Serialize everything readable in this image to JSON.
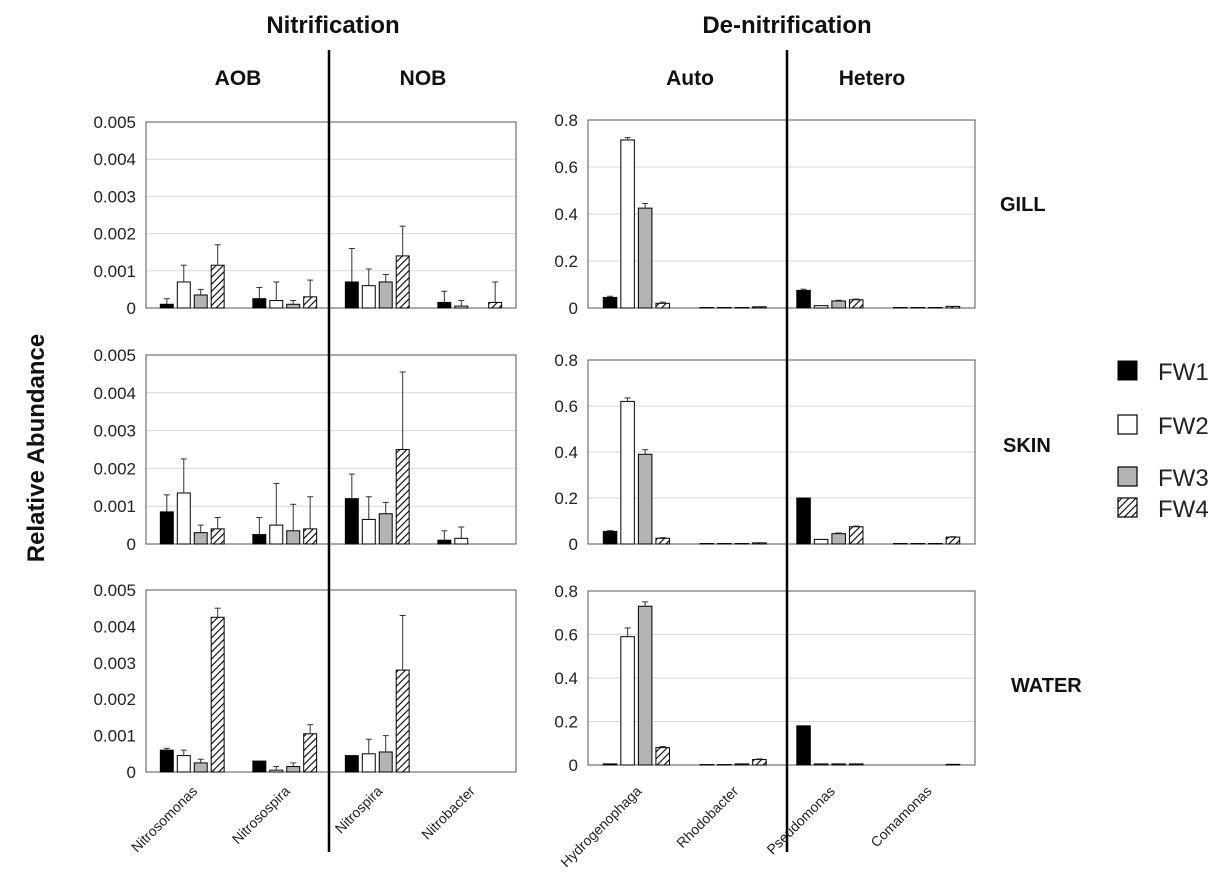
{
  "figure": {
    "headers": {
      "left": "Nitrification",
      "right": "De-nitrification"
    },
    "subheaders": [
      "AOB",
      "NOB",
      "Auto",
      "Hetero"
    ],
    "rows": [
      "GILL",
      "SKIN",
      "WATER"
    ],
    "ylabel": "Relative Abundance",
    "legend": [
      "FW1",
      "FW2",
      "FW3",
      "FW4"
    ],
    "series_styles": {
      "FW1": {
        "fill": "#000000",
        "pattern": "solid"
      },
      "FW2": {
        "fill": "#ffffff",
        "pattern": "solid"
      },
      "FW3": {
        "fill": "#b3b3b3",
        "pattern": "solid"
      },
      "FW4": {
        "fill": "#ffffff",
        "pattern": "diagonal-hatch"
      }
    }
  },
  "chart_data": [
    {
      "type": "bar",
      "panel": "nitrification",
      "row": "GILL",
      "categories": [
        "Nitrosomonas",
        "Nitrosospira",
        "Nitrospira",
        "Nitrobacter"
      ],
      "ylim": [
        0,
        0.005
      ],
      "yticks": [
        "0",
        "0.001",
        "0.002",
        "0.003",
        "0.004",
        "0.005"
      ],
      "grid": true,
      "series": [
        {
          "name": "FW1",
          "values": [
            0.0001,
            0.00025,
            0.0007,
            0.00015
          ],
          "errors": [
            0.00015,
            0.0003,
            0.0009,
            0.0003
          ]
        },
        {
          "name": "FW2",
          "values": [
            0.0007,
            0.0002,
            0.0006,
            5e-05
          ],
          "errors": [
            0.00045,
            0.0005,
            0.00045,
            0.00015
          ]
        },
        {
          "name": "FW3",
          "values": [
            0.00035,
            0.0001,
            0.0007,
            0.0
          ],
          "errors": [
            0.00015,
            0.0001,
            0.0002,
            0.0
          ]
        },
        {
          "name": "FW4",
          "values": [
            0.00115,
            0.0003,
            0.0014,
            0.00015
          ],
          "errors": [
            0.00055,
            0.00045,
            0.0008,
            0.00055
          ]
        }
      ]
    },
    {
      "type": "bar",
      "panel": "denitrification",
      "row": "GILL",
      "categories": [
        "Hydrogenophaga",
        "Rhodobacter",
        "Pseudomonas",
        "Comamonas"
      ],
      "ylim": [
        0,
        0.8
      ],
      "yticks": [
        "0",
        "0.2",
        "0.4",
        "0.6",
        "0.8"
      ],
      "grid": true,
      "series": [
        {
          "name": "FW1",
          "values": [
            0.045,
            0.002,
            0.075,
            0.002
          ],
          "errors": [
            0.005,
            0.0,
            0.005,
            0.0
          ]
        },
        {
          "name": "FW2",
          "values": [
            0.715,
            0.002,
            0.01,
            0.002
          ],
          "errors": [
            0.01,
            0.0,
            0.0,
            0.0
          ]
        },
        {
          "name": "FW3",
          "values": [
            0.425,
            0.002,
            0.03,
            0.002
          ],
          "errors": [
            0.02,
            0.0,
            0.003,
            0.0
          ]
        },
        {
          "name": "FW4",
          "values": [
            0.02,
            0.005,
            0.035,
            0.007
          ],
          "errors": [
            0.005,
            0.0,
            0.003,
            0.0
          ]
        }
      ]
    },
    {
      "type": "bar",
      "panel": "nitrification",
      "row": "SKIN",
      "categories": [
        "Nitrosomonas",
        "Nitrosospira",
        "Nitrospira",
        "Nitrobacter"
      ],
      "ylim": [
        0,
        0.005
      ],
      "yticks": [
        "0",
        "0.001",
        "0.002",
        "0.003",
        "0.004",
        "0.005"
      ],
      "grid": true,
      "series": [
        {
          "name": "FW1",
          "values": [
            0.00085,
            0.00025,
            0.0012,
            0.0001
          ],
          "errors": [
            0.00045,
            0.00045,
            0.00065,
            0.00025
          ]
        },
        {
          "name": "FW2",
          "values": [
            0.00135,
            0.0005,
            0.00065,
            0.00015
          ],
          "errors": [
            0.0009,
            0.0011,
            0.0006,
            0.0003
          ]
        },
        {
          "name": "FW3",
          "values": [
            0.0003,
            0.00035,
            0.0008,
            0.0
          ],
          "errors": [
            0.0002,
            0.0007,
            0.0003,
            0.0
          ]
        },
        {
          "name": "FW4",
          "values": [
            0.0004,
            0.0004,
            0.0025,
            0.0
          ],
          "errors": [
            0.0003,
            0.00085,
            0.00205,
            0.0
          ]
        }
      ]
    },
    {
      "type": "bar",
      "panel": "denitrification",
      "row": "SKIN",
      "categories": [
        "Hydrogenophaga",
        "Rhodobacter",
        "Pseudomonas",
        "Comamonas"
      ],
      "ylim": [
        0,
        0.8
      ],
      "yticks": [
        "0",
        "0.2",
        "0.4",
        "0.6",
        "0.8"
      ],
      "grid": true,
      "series": [
        {
          "name": "FW1",
          "values": [
            0.055,
            0.002,
            0.2,
            0.002
          ],
          "errors": [
            0.003,
            0.0,
            0.0,
            0.0
          ]
        },
        {
          "name": "FW2",
          "values": [
            0.62,
            0.002,
            0.02,
            0.002
          ],
          "errors": [
            0.015,
            0.0,
            0.0,
            0.0
          ]
        },
        {
          "name": "FW3",
          "values": [
            0.39,
            0.002,
            0.045,
            0.002
          ],
          "errors": [
            0.02,
            0.0,
            0.003,
            0.0
          ]
        },
        {
          "name": "FW4",
          "values": [
            0.025,
            0.005,
            0.075,
            0.03
          ],
          "errors": [
            0.003,
            0.0,
            0.003,
            0.002
          ]
        }
      ]
    },
    {
      "type": "bar",
      "panel": "nitrification",
      "row": "WATER",
      "categories": [
        "Nitrosomonas",
        "Nitrosospira",
        "Nitrospira",
        "Nitrobacter"
      ],
      "ylim": [
        0,
        0.005
      ],
      "yticks": [
        "0",
        "0.001",
        "0.002",
        "0.003",
        "0.004",
        "0.005"
      ],
      "grid": false,
      "series": [
        {
          "name": "FW1",
          "values": [
            0.0006,
            0.0003,
            0.00045,
            0.0
          ],
          "errors": [
            5e-05,
            0.0,
            0.0,
            0.0
          ]
        },
        {
          "name": "FW2",
          "values": [
            0.00045,
            5e-05,
            0.0005,
            0.0
          ],
          "errors": [
            0.00015,
            0.0001,
            0.0004,
            0.0
          ]
        },
        {
          "name": "FW3",
          "values": [
            0.00025,
            0.00015,
            0.00055,
            0.0
          ],
          "errors": [
            0.0001,
            0.0001,
            0.00045,
            0.0
          ]
        },
        {
          "name": "FW4",
          "values": [
            0.00425,
            0.00105,
            0.0028,
            0.0
          ],
          "errors": [
            0.00025,
            0.00025,
            0.0015,
            0.0
          ]
        }
      ]
    },
    {
      "type": "bar",
      "panel": "denitrification",
      "row": "WATER",
      "categories": [
        "Hydrogenophaga",
        "Rhodobacter",
        "Pseudomonas",
        "Comamonas"
      ],
      "ylim": [
        0,
        0.8
      ],
      "yticks": [
        "0",
        "0.2",
        "0.4",
        "0.6",
        "0.8"
      ],
      "grid": true,
      "series": [
        {
          "name": "FW1",
          "values": [
            0.005,
            0.002,
            0.18,
            0.0
          ],
          "errors": [
            0.0,
            0.0,
            0.0,
            0.0
          ]
        },
        {
          "name": "FW2",
          "values": [
            0.59,
            0.002,
            0.005,
            0.0
          ],
          "errors": [
            0.04,
            0.0,
            0.0,
            0.0
          ]
        },
        {
          "name": "FW3",
          "values": [
            0.73,
            0.005,
            0.005,
            0.0
          ],
          "errors": [
            0.02,
            0.0,
            0.0,
            0.0
          ]
        },
        {
          "name": "FW4",
          "values": [
            0.08,
            0.025,
            0.005,
            0.003
          ],
          "errors": [
            0.005,
            0.003,
            0.0,
            0.0
          ]
        }
      ]
    }
  ]
}
